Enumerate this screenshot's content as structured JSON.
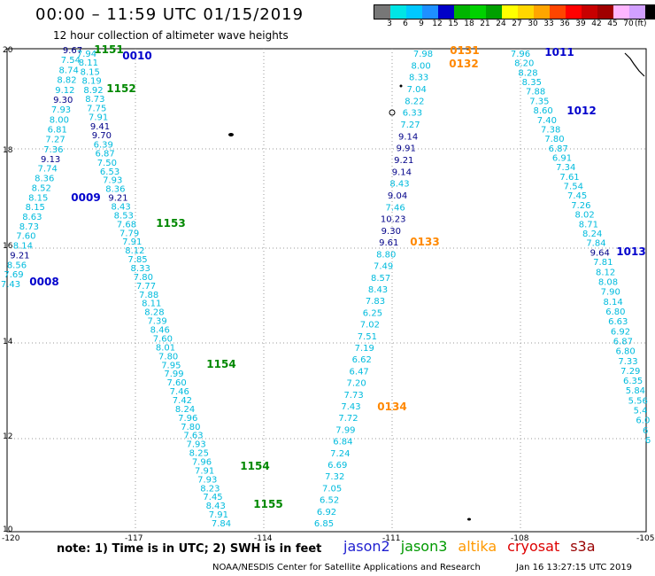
{
  "header": {
    "title": "00:00 – 11:59 UTC 01/15/2019",
    "subtitle": "12 hour collection of altimeter wave heights"
  },
  "colorbar": {
    "ticks": [
      "3",
      "6",
      "9",
      "12",
      "15",
      "18",
      "21",
      "24",
      "27",
      "30",
      "33",
      "36",
      "39",
      "42",
      "45",
      "70"
    ],
    "unit": "(ft)",
    "colors": [
      "#777777",
      "#00e5e5",
      "#00c8ff",
      "#1e90ff",
      "#0000c8",
      "#00b400",
      "#00d200",
      "#00a000",
      "#ffff00",
      "#ffd700",
      "#ffa500",
      "#ff4500",
      "#ff0000",
      "#c80000",
      "#a00000",
      "#ffb6ff",
      "#d2a0ff",
      "#000000"
    ]
  },
  "axes": {
    "y_labels": [
      "20",
      "18",
      "16",
      "14",
      "12",
      "10"
    ],
    "x_labels": [
      "-120",
      "-117",
      "-114",
      "-111",
      "-108",
      "-105"
    ]
  },
  "footer": {
    "note": "note: 1) Time is in UTC; 2) SWH is in feet",
    "credit": "NOAA/NESDIS Center for Satellite Applications and Research",
    "timestamp": "Jan 16 13:27:15 UTC 2019",
    "missions": [
      {
        "name": "jason2",
        "color": "#1e1ed0"
      },
      {
        "name": "jason3",
        "color": "#009900"
      },
      {
        "name": "altika",
        "color": "#ff9900"
      },
      {
        "name": "cryosat",
        "color": "#dd0000"
      },
      {
        "name": "s3a",
        "color": "#990000"
      }
    ]
  },
  "passes": [
    {
      "label": "0010",
      "mission": "jason2",
      "color": "#0000cc"
    },
    {
      "label": "1151",
      "mission": "jason3",
      "color": "#008800"
    },
    {
      "label": "1152",
      "mission": "jason3",
      "color": "#008800"
    },
    {
      "label": "0009",
      "mission": "jason2",
      "color": "#0000cc"
    },
    {
      "label": "1153",
      "mission": "jason3",
      "color": "#008800"
    },
    {
      "label": "0008",
      "mission": "jason2",
      "color": "#0000cc"
    },
    {
      "label": "1154",
      "mission": "jason3",
      "color": "#008800"
    },
    {
      "label": "1154",
      "mission": "jason3",
      "color": "#008800"
    },
    {
      "label": "1155",
      "mission": "jason3",
      "color": "#008800"
    },
    {
      "label": "0131",
      "mission": "altika",
      "color": "#ff8800"
    },
    {
      "label": "0132",
      "mission": "altika",
      "color": "#ff8800"
    },
    {
      "label": "0133",
      "mission": "altika",
      "color": "#ff8800"
    },
    {
      "label": "0134",
      "mission": "altika",
      "color": "#ff8800"
    },
    {
      "label": "1011",
      "mission": "jason2",
      "color": "#0000cc"
    },
    {
      "label": "1012",
      "mission": "jason2",
      "color": "#0000cc"
    },
    {
      "label": "1013",
      "mission": "jason2",
      "color": "#0000cc"
    }
  ],
  "tracks": [
    {
      "values": [
        "9.67",
        "7.54",
        "8.74",
        "8.82",
        "9.12",
        "9.30",
        "7.93",
        "8.00",
        "6.81",
        "7.27",
        "7.36",
        "9.13",
        "7.74",
        "8.36",
        "8.52",
        "8.15",
        "8.15",
        "8.63",
        "8.73",
        "7.60",
        "8.14",
        "9.21",
        "8.56",
        "7.69",
        "7.43"
      ],
      "colors": [
        "#000088",
        "#00bbdd",
        "#00bbdd",
        "#00bbdd",
        "#00bbdd",
        "#000088",
        "#00bbdd",
        "#00bbdd",
        "#00bbdd",
        "#00bbdd",
        "#00bbdd",
        "#000088",
        "#00bbdd",
        "#00bbdd",
        "#00bbdd",
        "#00bbdd",
        "#00bbdd",
        "#00bbdd",
        "#00bbdd",
        "#00bbdd",
        "#00bbdd",
        "#000088",
        "#00bbdd",
        "#00bbdd",
        "#00bbdd"
      ]
    },
    {
      "values": [
        "7.94",
        "8.11",
        "8.15",
        "8.19",
        "8.92",
        "8.73",
        "7.75",
        "7.91",
        "9.41",
        "9.70",
        "6.39",
        "6.87",
        "7.50",
        "6.53",
        "7.93",
        "8.36",
        "9.21",
        "8.43",
        "8.53",
        "7.68",
        "7.79",
        "7.91",
        "8.12",
        "7.85",
        "8.33",
        "7.80",
        "7.77",
        "7.88",
        "8.11",
        "8.28",
        "7.39",
        "8.46",
        "7.60",
        "8.01",
        "7.80",
        "7.95",
        "7.99",
        "7.60",
        "7.46",
        "7.42",
        "8.24",
        "7.96",
        "7.80",
        "7.63",
        "7.93",
        "8.25",
        "7.96",
        "7.91",
        "7.93",
        "8.23",
        "7.45",
        "8.43",
        "7.91",
        "7.84"
      ],
      "colors": [
        "#00bbdd",
        "#00bbdd",
        "#00bbdd",
        "#00bbdd",
        "#00bbdd",
        "#00bbdd",
        "#00bbdd",
        "#00bbdd",
        "#000088",
        "#000088",
        "#00bbdd",
        "#00bbdd",
        "#00bbdd",
        "#00bbdd",
        "#00bbdd",
        "#00bbdd",
        "#000088",
        "#00bbdd",
        "#00bbdd",
        "#00bbdd",
        "#00bbdd",
        "#00bbdd",
        "#00bbdd",
        "#00bbdd",
        "#00bbdd",
        "#00bbdd",
        "#00bbdd",
        "#00bbdd",
        "#00bbdd",
        "#00bbdd",
        "#00bbdd",
        "#00bbdd",
        "#00bbdd",
        "#00bbdd",
        "#00bbdd",
        "#00bbdd",
        "#00bbdd",
        "#00bbdd",
        "#00bbdd",
        "#00bbdd",
        "#00bbdd",
        "#00bbdd",
        "#00bbdd",
        "#00bbdd",
        "#00bbdd",
        "#00bbdd",
        "#00bbdd",
        "#00bbdd",
        "#00bbdd",
        "#00bbdd",
        "#00bbdd",
        "#00bbdd",
        "#00bbdd",
        "#00bbdd"
      ]
    },
    {
      "values": [
        "7.98",
        "8.00",
        "8.33",
        "7.04",
        "8.22",
        "6.33",
        "7.27",
        "9.14",
        "9.91",
        "9.21",
        "9.14",
        "8.43",
        "9.04",
        "7.46",
        "10.23",
        "9.30",
        "9.61",
        "8.80",
        "7.49",
        "8.57",
        "8.43",
        "7.83",
        "6.25",
        "7.02",
        "7.51",
        "7.19",
        "6.62",
        "6.47",
        "7.20",
        "7.73",
        "7.43",
        "7.72",
        "7.99",
        "6.84",
        "7.24",
        "6.69",
        "7.32",
        "7.05",
        "6.52",
        "6.92",
        "6.85"
      ],
      "colors": [
        "#00bbdd",
        "#00bbdd",
        "#00bbdd",
        "#00bbdd",
        "#00bbdd",
        "#00bbdd",
        "#00bbdd",
        "#000088",
        "#000088",
        "#000088",
        "#000088",
        "#00bbdd",
        "#000088",
        "#00bbdd",
        "#000088",
        "#000088",
        "#000088",
        "#00bbdd",
        "#00bbdd",
        "#00bbdd",
        "#00bbdd",
        "#00bbdd",
        "#00bbdd",
        "#00bbdd",
        "#00bbdd",
        "#00bbdd",
        "#00bbdd",
        "#00bbdd",
        "#00bbdd",
        "#00bbdd",
        "#00bbdd",
        "#00bbdd",
        "#00bbdd",
        "#00bbdd",
        "#00bbdd",
        "#00bbdd",
        "#00bbdd",
        "#00bbdd",
        "#00bbdd",
        "#00bbdd",
        "#00bbdd"
      ]
    },
    {
      "values": [
        "7.96",
        "8.20",
        "8.28",
        "8.35",
        "7.88",
        "7.35",
        "8.60",
        "7.40",
        "7.38",
        "7.80",
        "6.87",
        "6.91",
        "7.34",
        "7.61",
        "7.54",
        "7.45",
        "7.26",
        "8.02",
        "8.71",
        "8.24",
        "7.84",
        "9.64",
        "7.81",
        "8.12",
        "8.08",
        "7.90",
        "8.14",
        "6.80",
        "6.63",
        "6.92",
        "6.87",
        "6.80",
        "7.33",
        "7.29",
        "6.35",
        "5.84",
        "5.56",
        "5.4",
        "6.0",
        "6",
        "6"
      ],
      "colors": [
        "#00bbdd",
        "#00bbdd",
        "#00bbdd",
        "#00bbdd",
        "#00bbdd",
        "#00bbdd",
        "#00bbdd",
        "#00bbdd",
        "#00bbdd",
        "#00bbdd",
        "#00bbdd",
        "#00bbdd",
        "#00bbdd",
        "#00bbdd",
        "#00bbdd",
        "#00bbdd",
        "#00bbdd",
        "#00bbdd",
        "#00bbdd",
        "#00bbdd",
        "#00bbdd",
        "#000088",
        "#00bbdd",
        "#00bbdd",
        "#00bbdd",
        "#00bbdd",
        "#00bbdd",
        "#00bbdd",
        "#00bbdd",
        "#00bbdd",
        "#00bbdd",
        "#00bbdd",
        "#00bbdd",
        "#00bbdd",
        "#00bbdd",
        "#00bbdd",
        "#00bbdd",
        "#00bbdd",
        "#00bbdd",
        "#00bbdd",
        "#00bbdd"
      ]
    }
  ]
}
